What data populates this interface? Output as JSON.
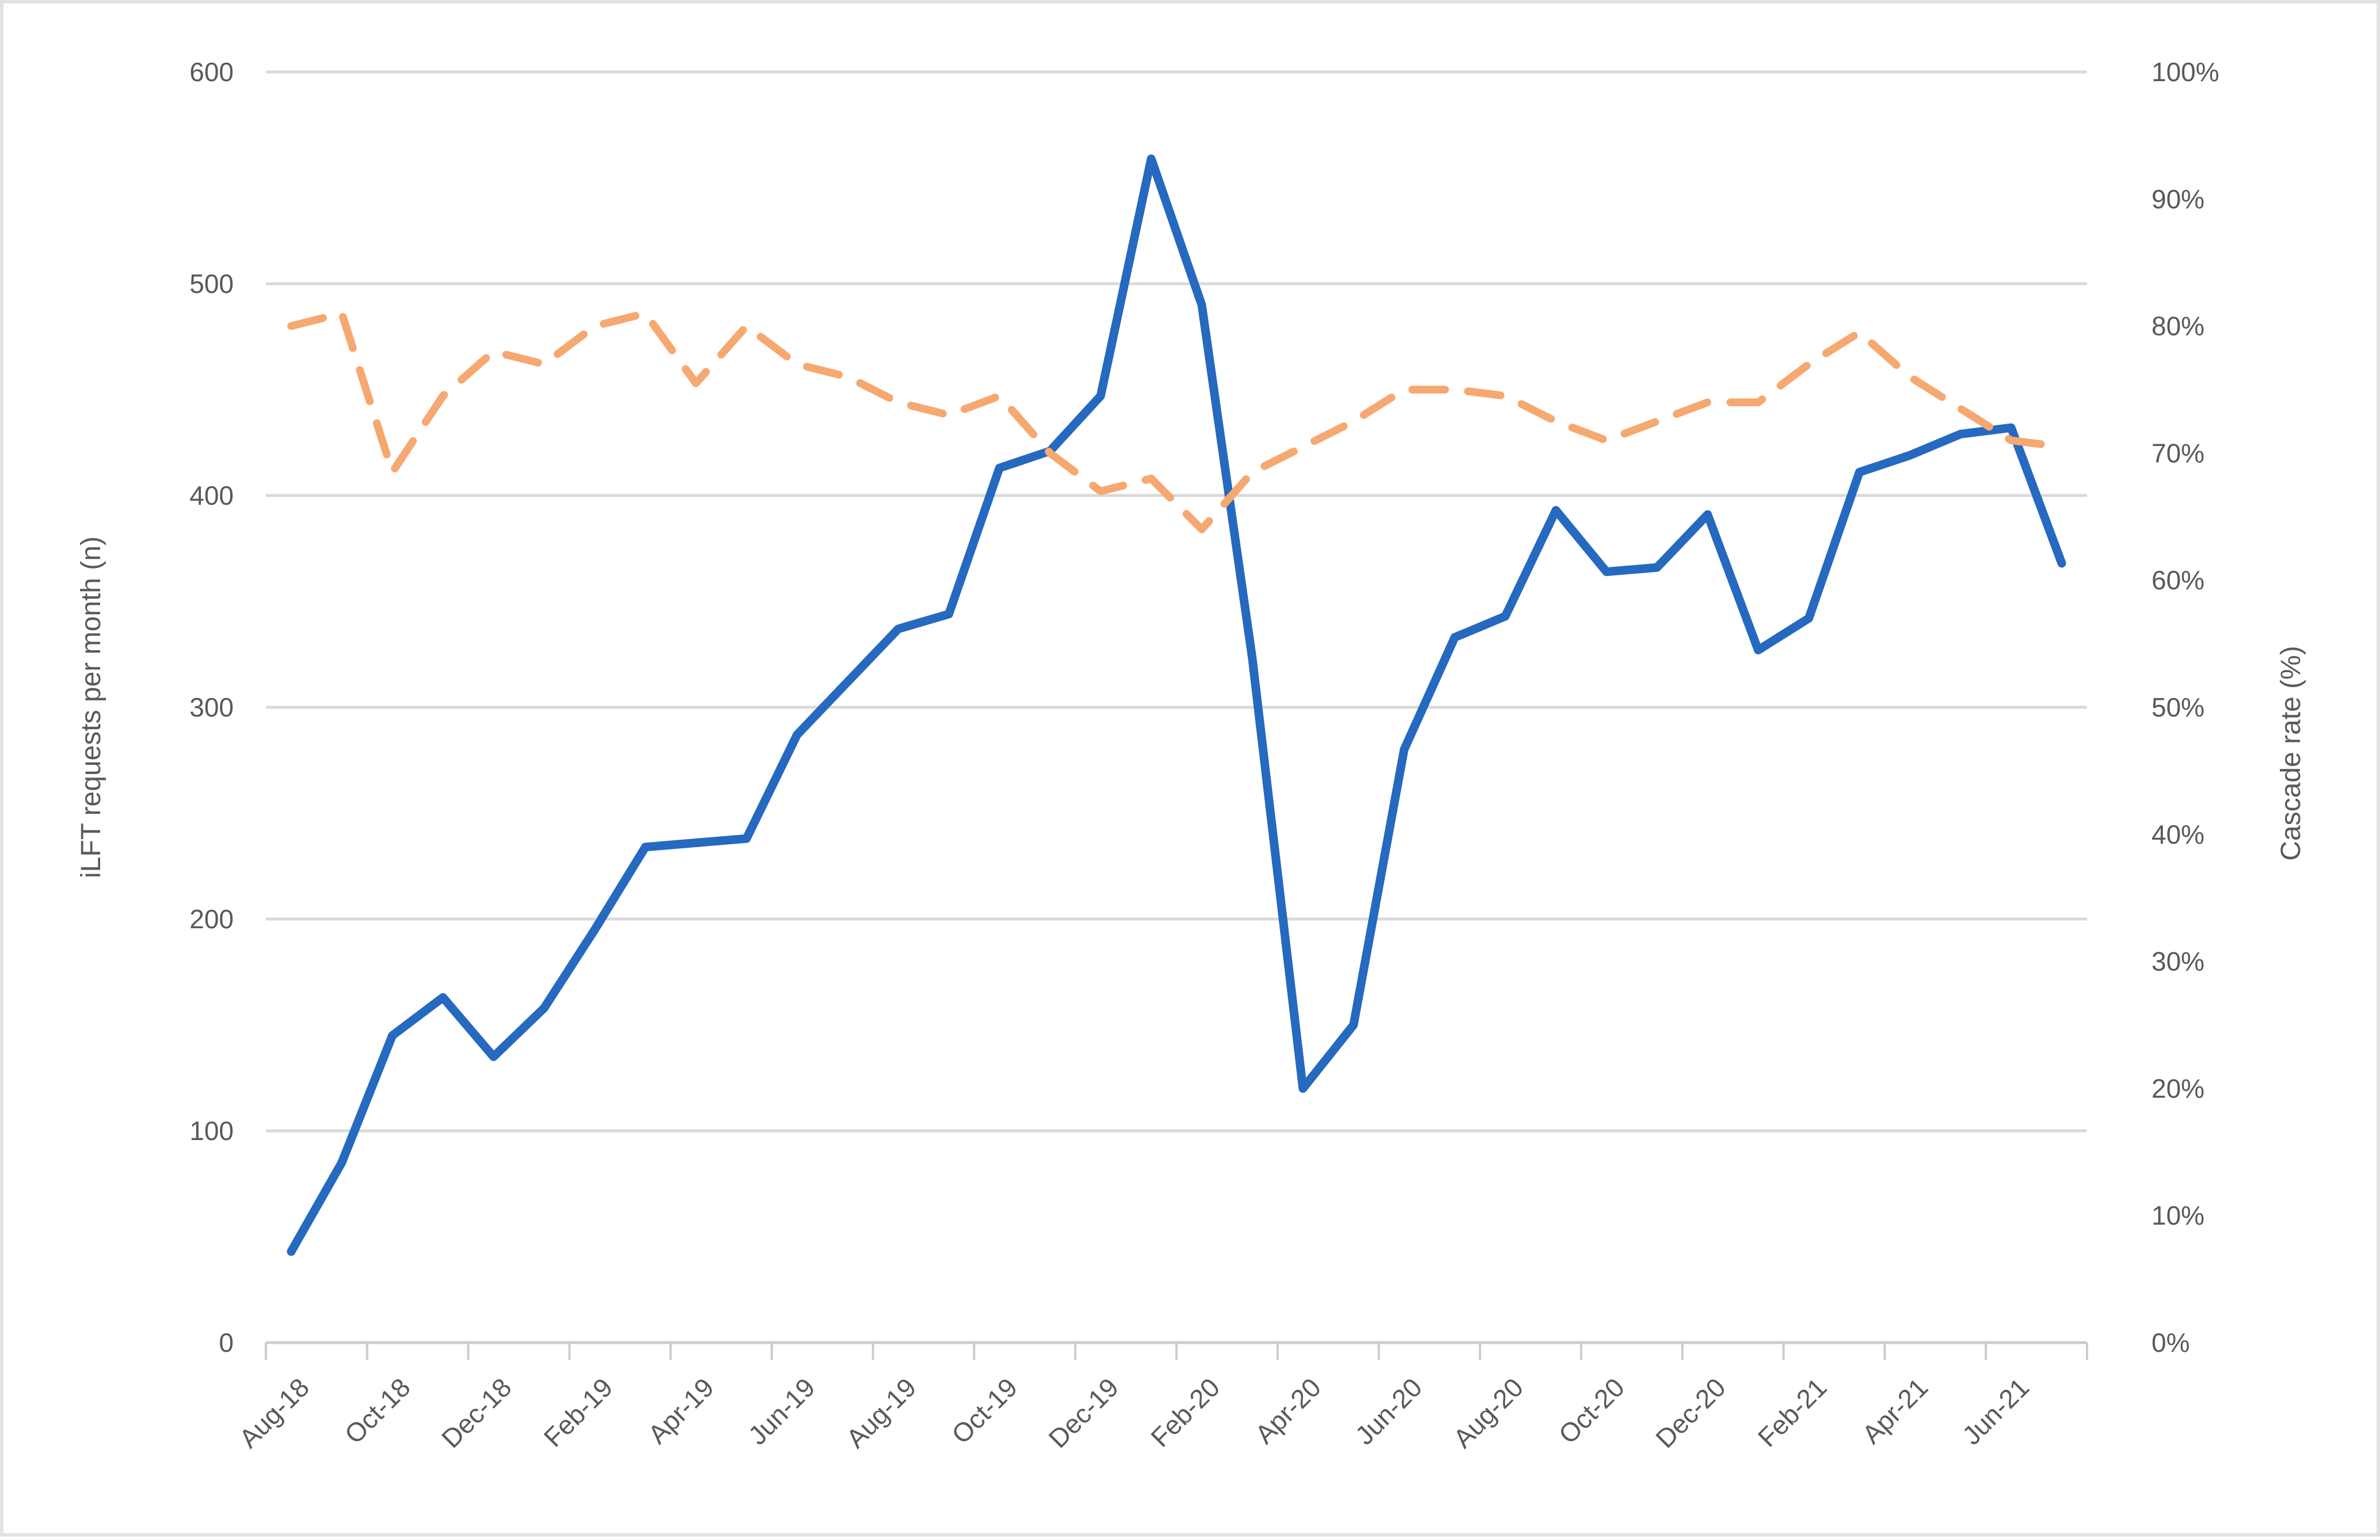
{
  "figure": {
    "background": "#ffffff",
    "border_color": "#e2e2e2"
  },
  "chart_data": {
    "type": "line",
    "title": "",
    "categories": [
      "Aug-18",
      "Sep-18",
      "Oct-18",
      "Nov-18",
      "Dec-18",
      "Jan-19",
      "Feb-19",
      "Mar-19",
      "Apr-19",
      "May-19",
      "Jun-19",
      "Jul-19",
      "Aug-19",
      "Sep-19",
      "Oct-19",
      "Nov-19",
      "Dec-19",
      "Jan-20",
      "Feb-20",
      "Mar-20",
      "Apr-20",
      "May-20",
      "Jun-20",
      "Jul-20",
      "Aug-20",
      "Sep-20",
      "Oct-20",
      "Nov-20",
      "Dec-20",
      "Jan-21",
      "Feb-21",
      "Mar-21",
      "Apr-21",
      "May-21",
      "Jun-21",
      "Jul-21"
    ],
    "x_tick_labels": [
      "Aug-18",
      "Oct-18",
      "Dec-18",
      "Feb-19",
      "Apr-19",
      "Jun-19",
      "Aug-19",
      "Oct-19",
      "Dec-19",
      "Feb-20",
      "Apr-20",
      "Jun-20",
      "Aug-20",
      "Oct-20",
      "Dec-20",
      "Feb-21",
      "Apr-21",
      "Jun-21"
    ],
    "series": [
      {
        "name": "iLFT requests per month",
        "axis": "left",
        "style": "solid",
        "color": "#2569c0",
        "values": [
          43,
          85,
          145,
          163,
          135,
          158,
          195,
          234,
          236,
          238,
          287,
          312,
          337,
          344,
          413,
          421,
          447,
          559,
          490,
          323,
          120,
          150,
          280,
          333,
          343,
          393,
          364,
          366,
          391,
          327,
          342,
          411,
          419,
          429,
          432,
          368
        ]
      },
      {
        "name": "Cascade rate",
        "axis": "right",
        "style": "dashed",
        "color": "#f6a871",
        "values": [
          80,
          81,
          68.5,
          74.5,
          78,
          77,
          80,
          81,
          75.5,
          80,
          77,
          76,
          74,
          73,
          74.5,
          70,
          67,
          68,
          64,
          68.5,
          70.5,
          72.5,
          75,
          75,
          74.5,
          72.5,
          71,
          72.5,
          74,
          74,
          77,
          79.5,
          76,
          73.5,
          71,
          70.5
        ]
      }
    ],
    "left_axis": {
      "label": "iLFT requests per month (n)",
      "min": 0,
      "max": 600,
      "tick_step": 100,
      "tick_labels": [
        "0",
        "100",
        "200",
        "300",
        "400",
        "500",
        "600"
      ]
    },
    "right_axis": {
      "label": "Cascade rate (%)",
      "min": 0,
      "max": 100,
      "tick_step": 10,
      "tick_labels": [
        "0%",
        "10%",
        "20%",
        "30%",
        "40%",
        "50%",
        "60%",
        "70%",
        "80%",
        "90%",
        "100%"
      ]
    },
    "grid": "horizontal-on",
    "legend_position": "none",
    "gridline_color": "#d9d9d9",
    "axis_line_color": "#cccccc",
    "text_color": "#595959"
  }
}
